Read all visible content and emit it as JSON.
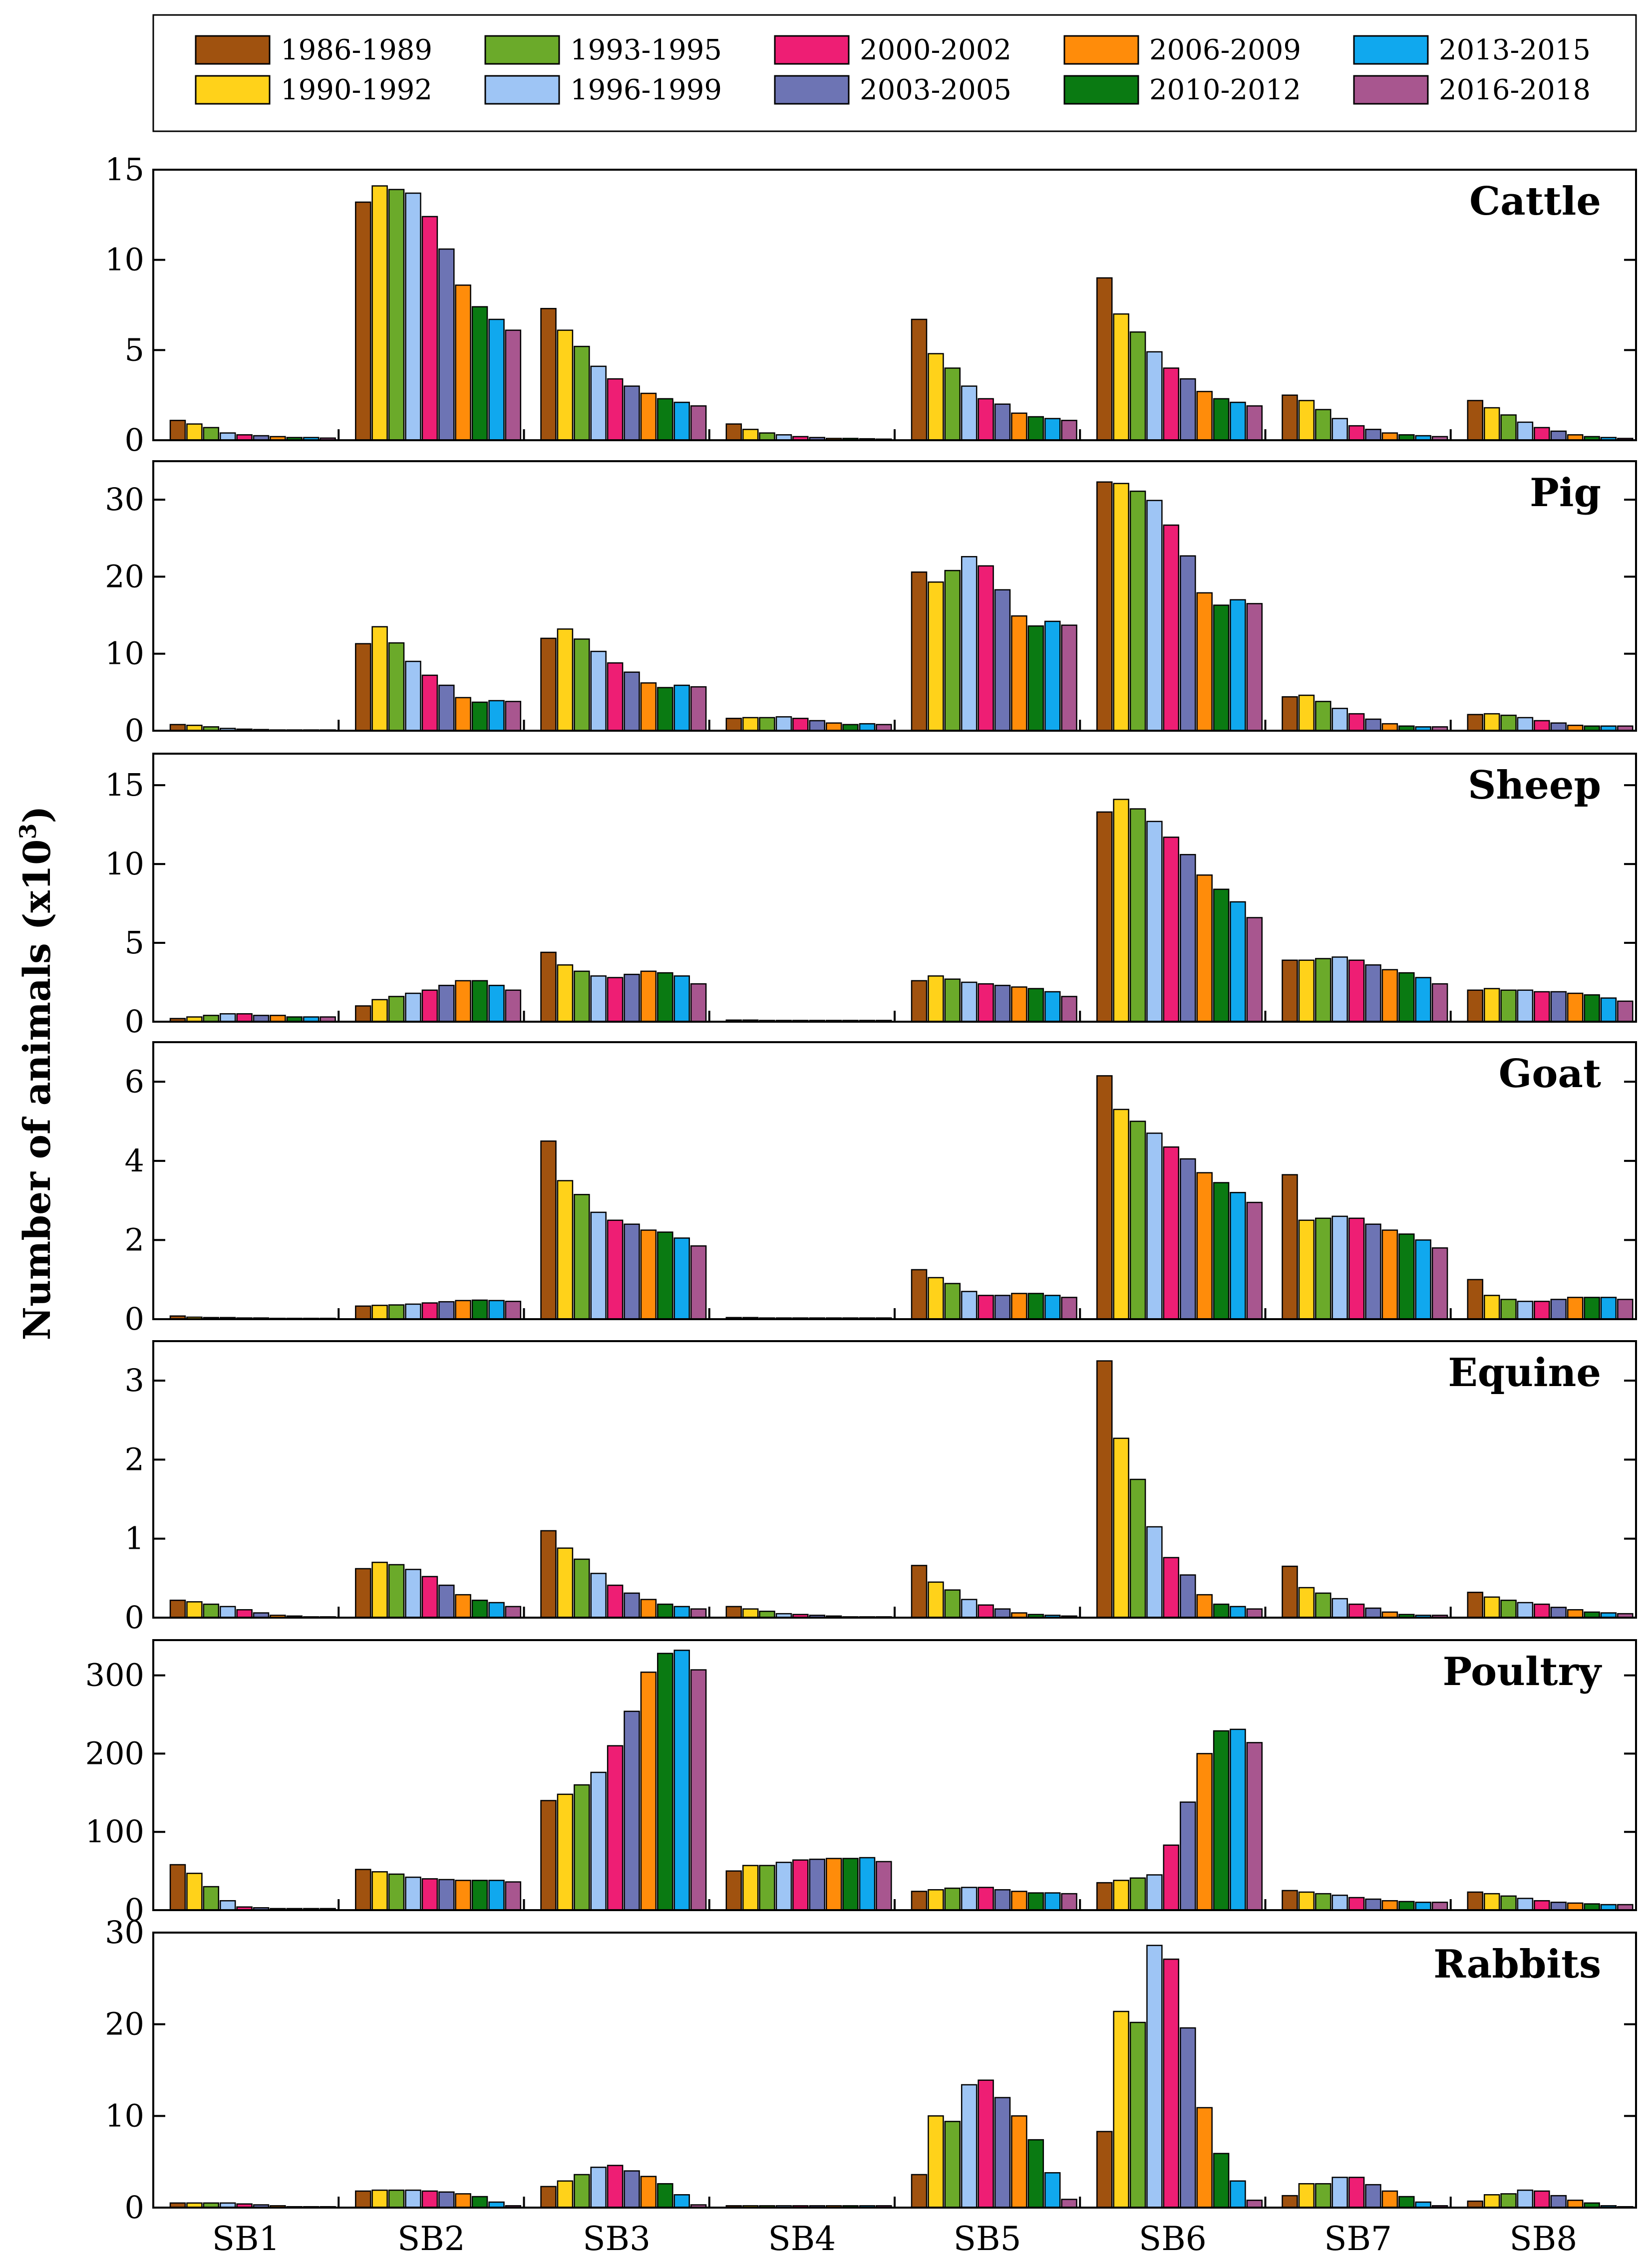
{
  "chart_data": {
    "type": "bar",
    "ylabel": "Number of animals (x10",
    "ylabel_exponent": "3",
    "ylabel_suffix": ")",
    "categories": [
      "SB1",
      "SB2",
      "SB3",
      "SB4",
      "SB5",
      "SB6",
      "SB7",
      "SB8"
    ],
    "legend": {
      "placement": "top",
      "entries": [
        {
          "name": "1986-1989",
          "color": "#A0520F"
        },
        {
          "name": "1990-1992",
          "color": "#FFD21A"
        },
        {
          "name": "1993-1995",
          "color": "#6BAA2A"
        },
        {
          "name": "1996-1999",
          "color": "#9EC5F5"
        },
        {
          "name": "2000-2002",
          "color": "#EE1E74"
        },
        {
          "name": "2003-2005",
          "color": "#6D74B4"
        },
        {
          "name": "2006-2009",
          "color": "#FF8C0A"
        },
        {
          "name": "2010-2012",
          "color": "#0A7A12"
        },
        {
          "name": "2013-2015",
          "color": "#10A8EE"
        },
        {
          "name": "2016-2018",
          "color": "#A8568F"
        }
      ]
    },
    "panels": [
      {
        "title": "Cattle",
        "ylim": [
          0,
          15
        ],
        "yticks": [
          0,
          5,
          10,
          15
        ],
        "values": [
          [
            1.1,
            0.9,
            0.7,
            0.4,
            0.3,
            0.25,
            0.2,
            0.15,
            0.15,
            0.12
          ],
          [
            13.2,
            14.1,
            13.9,
            13.7,
            12.4,
            10.6,
            8.6,
            7.4,
            6.7,
            6.1
          ],
          [
            7.3,
            6.1,
            5.2,
            4.1,
            3.4,
            3.0,
            2.6,
            2.3,
            2.1,
            1.9
          ],
          [
            0.9,
            0.6,
            0.4,
            0.3,
            0.2,
            0.15,
            0.1,
            0.1,
            0.08,
            0.06
          ],
          [
            6.7,
            4.8,
            4.0,
            3.0,
            2.3,
            2.0,
            1.5,
            1.3,
            1.2,
            1.1
          ],
          [
            9.0,
            7.0,
            6.0,
            4.9,
            4.0,
            3.4,
            2.7,
            2.3,
            2.1,
            1.9
          ],
          [
            2.5,
            2.2,
            1.7,
            1.2,
            0.8,
            0.6,
            0.4,
            0.3,
            0.25,
            0.2
          ],
          [
            2.2,
            1.8,
            1.4,
            1.0,
            0.7,
            0.5,
            0.3,
            0.2,
            0.15,
            0.1
          ]
        ]
      },
      {
        "title": "Pig",
        "ylim": [
          0,
          35
        ],
        "yticks": [
          0,
          10,
          20,
          30
        ],
        "values": [
          [
            0.8,
            0.7,
            0.5,
            0.3,
            0.2,
            0.15,
            0.1,
            0.1,
            0.1,
            0.1
          ],
          [
            11.3,
            13.5,
            11.4,
            9.0,
            7.2,
            5.9,
            4.3,
            3.7,
            3.9,
            3.8
          ],
          [
            12.0,
            13.2,
            11.9,
            10.3,
            8.8,
            7.6,
            6.2,
            5.6,
            5.9,
            5.7
          ],
          [
            1.6,
            1.7,
            1.7,
            1.8,
            1.6,
            1.3,
            1.0,
            0.8,
            0.9,
            0.8
          ],
          [
            20.6,
            19.3,
            20.8,
            22.6,
            21.4,
            18.3,
            14.9,
            13.6,
            14.2,
            13.7
          ],
          [
            32.3,
            32.1,
            31.1,
            29.9,
            26.7,
            22.7,
            17.9,
            16.3,
            17.0,
            16.5
          ],
          [
            4.4,
            4.6,
            3.8,
            2.9,
            2.2,
            1.5,
            0.9,
            0.6,
            0.5,
            0.5
          ],
          [
            2.1,
            2.2,
            2.0,
            1.7,
            1.3,
            1.0,
            0.7,
            0.6,
            0.6,
            0.6
          ]
        ]
      },
      {
        "title": "Sheep",
        "ylim": [
          0,
          17
        ],
        "yticks": [
          0,
          5,
          10,
          15
        ],
        "values": [
          [
            0.2,
            0.3,
            0.4,
            0.5,
            0.5,
            0.4,
            0.4,
            0.3,
            0.3,
            0.3
          ],
          [
            1.0,
            1.4,
            1.6,
            1.8,
            2.0,
            2.3,
            2.6,
            2.6,
            2.3,
            2.0
          ],
          [
            4.4,
            3.6,
            3.2,
            2.9,
            2.8,
            3.0,
            3.2,
            3.1,
            2.9,
            2.4
          ],
          [
            0.1,
            0.1,
            0.08,
            0.08,
            0.08,
            0.08,
            0.08,
            0.08,
            0.08,
            0.08
          ],
          [
            2.6,
            2.9,
            2.7,
            2.5,
            2.4,
            2.3,
            2.2,
            2.1,
            1.9,
            1.6
          ],
          [
            13.3,
            14.1,
            13.5,
            12.7,
            11.7,
            10.6,
            9.3,
            8.4,
            7.6,
            6.6
          ],
          [
            3.9,
            3.9,
            4.0,
            4.1,
            3.9,
            3.6,
            3.3,
            3.1,
            2.8,
            2.4
          ],
          [
            2.0,
            2.1,
            2.0,
            2.0,
            1.9,
            1.9,
            1.8,
            1.7,
            1.5,
            1.3
          ]
        ]
      },
      {
        "title": "Goat",
        "ylim": [
          0,
          7
        ],
        "yticks": [
          0,
          2,
          4,
          6
        ],
        "values": [
          [
            0.08,
            0.05,
            0.04,
            0.04,
            0.03,
            0.03,
            0.02,
            0.02,
            0.02,
            0.02
          ],
          [
            0.33,
            0.35,
            0.36,
            0.38,
            0.41,
            0.44,
            0.47,
            0.48,
            0.47,
            0.45
          ],
          [
            4.5,
            3.5,
            3.15,
            2.7,
            2.5,
            2.4,
            2.25,
            2.2,
            2.05,
            1.85
          ],
          [
            0.04,
            0.04,
            0.03,
            0.03,
            0.03,
            0.03,
            0.03,
            0.03,
            0.03,
            0.03
          ],
          [
            1.25,
            1.05,
            0.9,
            0.7,
            0.6,
            0.6,
            0.65,
            0.65,
            0.6,
            0.55
          ],
          [
            6.15,
            5.3,
            5.0,
            4.7,
            4.35,
            4.05,
            3.7,
            3.45,
            3.2,
            2.95
          ],
          [
            3.65,
            2.5,
            2.55,
            2.6,
            2.55,
            2.4,
            2.25,
            2.15,
            2.0,
            1.8
          ],
          [
            1.0,
            0.6,
            0.5,
            0.45,
            0.45,
            0.5,
            0.55,
            0.55,
            0.55,
            0.5
          ]
        ]
      },
      {
        "title": "Equine",
        "ylim": [
          0,
          3.5
        ],
        "yticks": [
          0,
          1,
          2,
          3
        ],
        "values": [
          [
            0.22,
            0.2,
            0.17,
            0.14,
            0.1,
            0.06,
            0.03,
            0.02,
            0.01,
            0.01
          ],
          [
            0.62,
            0.7,
            0.67,
            0.61,
            0.52,
            0.41,
            0.29,
            0.22,
            0.19,
            0.14
          ],
          [
            1.1,
            0.88,
            0.74,
            0.56,
            0.41,
            0.31,
            0.23,
            0.17,
            0.14,
            0.11
          ],
          [
            0.14,
            0.11,
            0.08,
            0.05,
            0.04,
            0.03,
            0.02,
            0.01,
            0.01,
            0.01
          ],
          [
            0.66,
            0.45,
            0.35,
            0.23,
            0.16,
            0.11,
            0.06,
            0.04,
            0.03,
            0.02
          ],
          [
            3.25,
            2.27,
            1.75,
            1.15,
            0.76,
            0.54,
            0.29,
            0.17,
            0.14,
            0.11
          ],
          [
            0.65,
            0.38,
            0.31,
            0.24,
            0.17,
            0.12,
            0.07,
            0.04,
            0.03,
            0.03
          ],
          [
            0.32,
            0.26,
            0.22,
            0.19,
            0.17,
            0.13,
            0.1,
            0.07,
            0.06,
            0.05
          ]
        ]
      },
      {
        "title": "Poultry",
        "ylim": [
          0,
          345
        ],
        "yticks": [
          0,
          100,
          200,
          300
        ],
        "values": [
          [
            58,
            47,
            30,
            12,
            4,
            3,
            2,
            2,
            2,
            2
          ],
          [
            52,
            49,
            46,
            42,
            40,
            39,
            38,
            38,
            38,
            36
          ],
          [
            140,
            148,
            160,
            176,
            210,
            254,
            304,
            328,
            332,
            307
          ],
          [
            50,
            57,
            57,
            61,
            64,
            65,
            66,
            66,
            67,
            62
          ],
          [
            24,
            26,
            28,
            29,
            29,
            26,
            24,
            22,
            22,
            21
          ],
          [
            35,
            38,
            41,
            45,
            83,
            138,
            200,
            229,
            231,
            214
          ],
          [
            25,
            23,
            21,
            19,
            16,
            14,
            12,
            11,
            10,
            10
          ],
          [
            23,
            21,
            18,
            15,
            12,
            10,
            9,
            8,
            7,
            7
          ]
        ]
      },
      {
        "title": "Rabbits",
        "ylim": [
          0,
          30
        ],
        "yticks": [
          0,
          10,
          20,
          30
        ],
        "values": [
          [
            0.5,
            0.5,
            0.5,
            0.5,
            0.4,
            0.3,
            0.2,
            0.1,
            0.1,
            0.1
          ],
          [
            1.8,
            1.9,
            1.9,
            1.9,
            1.8,
            1.7,
            1.5,
            1.2,
            0.6,
            0.2
          ],
          [
            2.3,
            2.9,
            3.6,
            4.4,
            4.6,
            4.0,
            3.4,
            2.6,
            1.4,
            0.3
          ],
          [
            0.2,
            0.2,
            0.2,
            0.2,
            0.2,
            0.2,
            0.2,
            0.2,
            0.2,
            0.2
          ],
          [
            3.6,
            10.0,
            9.4,
            13.4,
            13.9,
            12.0,
            10.0,
            7.4,
            3.8,
            0.9
          ],
          [
            8.3,
            21.4,
            20.2,
            28.6,
            27.1,
            19.6,
            10.9,
            5.9,
            2.9,
            0.8
          ],
          [
            1.3,
            2.6,
            2.6,
            3.3,
            3.3,
            2.5,
            1.8,
            1.2,
            0.6,
            0.2
          ],
          [
            0.7,
            1.4,
            1.5,
            1.9,
            1.8,
            1.3,
            0.8,
            0.5,
            0.2,
            0.1
          ]
        ]
      }
    ]
  }
}
